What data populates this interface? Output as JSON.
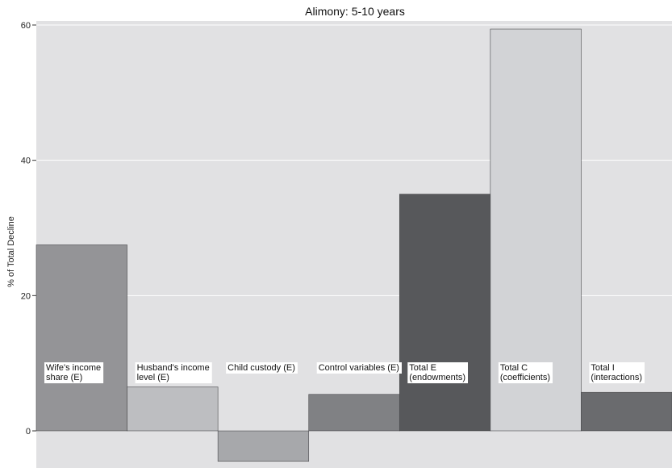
{
  "chart_data": {
    "type": "bar",
    "title": "Alimony: 5-10 years",
    "xlabel": "",
    "ylabel": "% of Total Decline",
    "ylim": [
      -5,
      61
    ],
    "yticks": [
      0,
      20,
      40,
      60
    ],
    "grid": true,
    "legend": "none",
    "categories": [
      "Wife's income share (E)",
      "Husband's income level (E)",
      "Child custody (E)",
      "Control variables (E)",
      "Total E (endowments)",
      "Total C (coefficients)",
      "Total I (interactions)"
    ],
    "category_label_lines": [
      [
        "Wife's income",
        "share (E)"
      ],
      [
        "Husband's income",
        "level (E)"
      ],
      [
        "Child custody (E)"
      ],
      [
        "Control variables (E)"
      ],
      [
        "Total E",
        "(endowments)"
      ],
      [
        "Total C",
        "(coefficients)"
      ],
      [
        "Total I",
        "(interactions)"
      ]
    ],
    "values": [
      27.5,
      6.5,
      -4.5,
      5.4,
      35.0,
      59.4,
      5.7
    ],
    "colors": [
      "#949497",
      "#bdbec1",
      "#a7a8ab",
      "#808184",
      "#57585b",
      "#d2d3d6",
      "#6a6b6e"
    ],
    "background": "#e1e1e3"
  }
}
